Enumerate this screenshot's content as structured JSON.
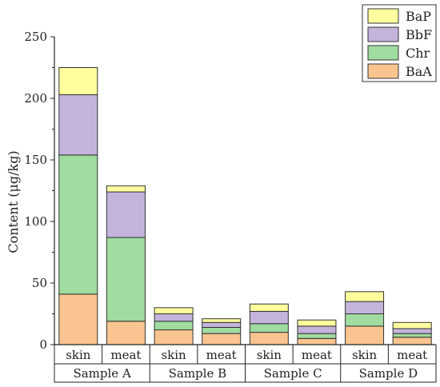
{
  "chart_data": {
    "type": "bar",
    "stacked": true,
    "ylabel": "Content (μg/kg)",
    "ylim": [
      0,
      250
    ],
    "yticks": [
      0,
      50,
      100,
      150,
      200,
      250
    ],
    "categories": [
      "skin",
      "meat",
      "skin",
      "meat",
      "skin",
      "meat",
      "skin",
      "meat"
    ],
    "groups": [
      {
        "label": "Sample A",
        "span": 2
      },
      {
        "label": "Sample B",
        "span": 2
      },
      {
        "label": "Sample C",
        "span": 2
      },
      {
        "label": "Sample D",
        "span": 2
      }
    ],
    "series": [
      {
        "name": "BaA",
        "color": "#f9c48f",
        "values": [
          41,
          19,
          12,
          9,
          10,
          5,
          15,
          6
        ]
      },
      {
        "name": "Chr",
        "color": "#a0dba0",
        "values": [
          113,
          68,
          7,
          5,
          7,
          4,
          10,
          3
        ]
      },
      {
        "name": "BbF",
        "color": "#c4b4dc",
        "values": [
          49,
          37,
          6,
          4,
          10,
          6,
          10,
          4
        ]
      },
      {
        "name": "BaP",
        "color": "#ffff9e",
        "values": [
          22,
          5,
          5,
          3,
          6,
          5,
          8,
          5
        ]
      }
    ],
    "legend_order": [
      "BaP",
      "BbF",
      "Chr",
      "BaA"
    ],
    "legend_position": "top-right",
    "grid": false
  }
}
